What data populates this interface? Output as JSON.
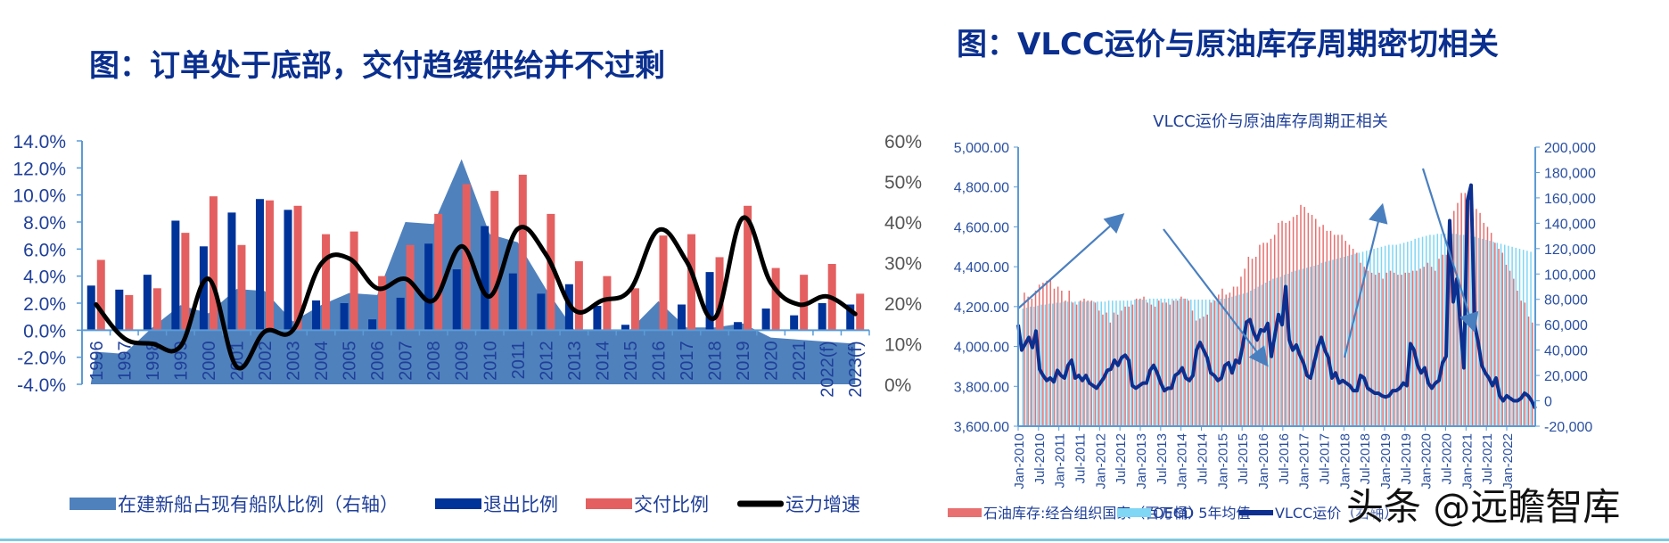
{
  "left_panel": {
    "title": "图：订单处于底部，交付趋缓供给并不过剩"
  },
  "right_panel": {
    "title": "图：VLCC运价与原油库存周期密切相关",
    "chart_title": "VLCC运价与原油库存周期正相关"
  },
  "watermark": "头条 @远瞻智库",
  "colors": {
    "title": "#0a2f8f",
    "area": "#4f81bd",
    "exit_bar": "#003399",
    "delivery_bar": "#e46060",
    "growth_line": "#000000",
    "inventory_bar": "#e87070",
    "oecd_avg_bar": "#7fd6f5",
    "vlcc_line": "#0d2f8f",
    "arrow": "#4a7fbf",
    "axis": "#5b9bd5"
  },
  "chart_data": [
    {
      "type": "bar+line+area",
      "title": "图：订单处于底部，交付趋缓供给并不过剩",
      "categories": [
        "1996",
        "1997",
        "1998",
        "1999",
        "2000",
        "2001",
        "2002",
        "2003",
        "2004",
        "2005",
        "2006",
        "2007",
        "2008",
        "2009",
        "2010",
        "2011",
        "2012",
        "2013",
        "2014",
        "2015",
        "2016",
        "2017",
        "2018",
        "2019",
        "2020",
        "2021",
        "2022(f)",
        "2023(f)"
      ],
      "left_axis": {
        "ylim": [
          -4.0,
          14.0
        ],
        "ticks": [
          "-4.0%",
          "-2.0%",
          "0.0%",
          "2.0%",
          "4.0%",
          "6.0%",
          "8.0%",
          "10.0%",
          "12.0%",
          "14.0%"
        ]
      },
      "right_axis": {
        "ylim": [
          0,
          60
        ],
        "ticks": [
          "0%",
          "10%",
          "20%",
          "30%",
          "40%",
          "50%",
          "60%"
        ]
      },
      "series": [
        {
          "name": "在建新船占现有船队比例（右轴）",
          "type": "area",
          "axis": "right",
          "values": [
            8.0,
            7.5,
            14.0,
            19.5,
            17.5,
            23.5,
            23.0,
            15.5,
            19.5,
            22.5,
            22.0,
            40.0,
            39.5,
            55.5,
            37.0,
            35.0,
            23.5,
            13.5,
            13.5,
            13.5,
            20.5,
            14.0,
            14.0,
            15.0,
            11.5,
            11.0,
            10.5,
            10.0
          ]
        },
        {
          "name": "退出比例",
          "type": "bar",
          "axis": "left",
          "values": [
            3.3,
            3.0,
            4.1,
            8.1,
            6.2,
            8.7,
            9.7,
            8.9,
            2.2,
            2.0,
            0.8,
            2.4,
            6.4,
            4.5,
            7.7,
            4.2,
            2.7,
            3.4,
            1.8,
            0.4,
            0.0,
            1.9,
            4.3,
            0.6,
            1.6,
            1.1,
            2.0,
            1.9
          ]
        },
        {
          "name": "交付比例",
          "type": "bar",
          "axis": "left",
          "values": [
            5.2,
            2.6,
            3.1,
            7.2,
            9.9,
            6.3,
            9.6,
            9.2,
            7.1,
            7.3,
            4.0,
            6.3,
            8.6,
            10.8,
            10.3,
            11.5,
            8.6,
            5.1,
            4.0,
            3.1,
            7.0,
            7.1,
            5.4,
            9.2,
            4.6,
            4.1,
            4.9,
            2.7
          ]
        },
        {
          "name": "运力增速",
          "type": "line",
          "axis": "left",
          "values": [
            1.9,
            -0.6,
            -1.0,
            -1.2,
            3.8,
            -2.7,
            -0.1,
            0.0,
            4.9,
            5.3,
            3.1,
            3.8,
            2.2,
            6.2,
            2.5,
            7.5,
            5.6,
            1.5,
            2.2,
            3.0,
            7.4,
            5.1,
            0.9,
            8.3,
            3.5,
            1.9,
            2.5,
            1.2
          ]
        }
      ],
      "legend": [
        "在建新船占现有船队比例（右轴）",
        "退出比例",
        "交付比例",
        "运力增速"
      ],
      "legend_position": "bottom"
    },
    {
      "type": "bar+line",
      "title": "VLCC运价与原油库存周期正相关",
      "x_tick_labels": [
        "Jan-2010",
        "Jul-2010",
        "Jan-2011",
        "Jul-2011",
        "Jan-2012",
        "Jul-2012",
        "Jan-2013",
        "Jul-2013",
        "Jan-2014",
        "Jul-2014",
        "Jan-2015",
        "Jul-2015",
        "Jan-2016",
        "Jul-2016",
        "Jan-2017",
        "Jul-2017",
        "Jan-2018",
        "Jul-2018",
        "Jan-2019",
        "Jul-2019",
        "Jan-2020",
        "Jul-2020",
        "Jan-2021",
        "Jul-2021",
        "Jan-2022"
      ],
      "left_axis": {
        "ylim": [
          3600,
          5000
        ],
        "ticks": [
          "3,600.00",
          "3,800.00",
          "4,000.00",
          "4,200.00",
          "4,400.00",
          "4,600.00",
          "4,800.00",
          "5,000.00"
        ]
      },
      "right_axis": {
        "ylim": [
          -20000,
          200000
        ],
        "ticks": [
          "-20,000",
          "0",
          "20,000",
          "40,000",
          "60,000",
          "80,000",
          "100,000",
          "120,000",
          "140,000",
          "160,000",
          "180,000",
          "200,000"
        ]
      },
      "series": [
        {
          "name": "石油库存:经合组织国家（百万桶）",
          "type": "bar",
          "axis": "left",
          "values": [
            4270,
            4250,
            4240,
            4280,
            4310,
            4320,
            4330,
            4340,
            4290,
            4300,
            4280,
            4230,
            4280,
            4220,
            4210,
            4230,
            4240,
            4230,
            4230,
            4220,
            4180,
            4160,
            4170,
            4120,
            4170,
            4160,
            4180,
            4200,
            4200,
            4210,
            4240,
            4240,
            4250,
            4220,
            4210,
            4200,
            4230,
            4220,
            4220,
            4210,
            4230,
            4230,
            4250,
            4240,
            4230,
            4180,
            4130,
            4140,
            4150,
            4160,
            4220,
            4230,
            4260,
            4290,
            4260,
            4270,
            4300,
            4300,
            4350,
            4390,
            4450,
            4440,
            4450,
            4510,
            4520,
            4520,
            4540,
            4560,
            4620,
            4630,
            4620,
            4630,
            4650,
            4660,
            4710,
            4700,
            4670,
            4660,
            4640,
            4600,
            4610,
            4580,
            4580,
            4560,
            4560,
            4560,
            4530,
            4510,
            4490,
            4470,
            4420,
            4400,
            4380,
            4370,
            4360,
            4370,
            4340,
            4370,
            4380,
            4370,
            4360,
            4360,
            4370,
            4370,
            4380,
            4380,
            4390,
            4400,
            4420,
            4400,
            4380,
            4440,
            4460,
            4460,
            4600,
            4680,
            4720,
            4770,
            4770,
            4760,
            4720,
            4690,
            4670,
            4620,
            4600,
            4570,
            4520,
            4490,
            4470,
            4410,
            4380,
            4340,
            4280,
            4230,
            4220,
            4150,
            4120
          ]
        },
        {
          "name": "OECD 5年均值",
          "type": "bar",
          "axis": "left",
          "values": [
            4190,
            4195,
            4200,
            4200,
            4205,
            4210,
            4210,
            4215,
            4215,
            4220,
            4220,
            4225,
            4225,
            4225,
            4225,
            4225,
            4225,
            4225,
            4225,
            4225,
            4225,
            4225,
            4225,
            4230,
            4230,
            4230,
            4230,
            4230,
            4230,
            4230,
            4235,
            4235,
            4235,
            4235,
            4240,
            4240,
            4240,
            4240,
            4240,
            4240,
            4240,
            4240,
            4240,
            4240,
            4240,
            4235,
            4235,
            4235,
            4235,
            4235,
            4235,
            4235,
            4235,
            4240,
            4240,
            4245,
            4250,
            4255,
            4260,
            4265,
            4270,
            4280,
            4290,
            4300,
            4310,
            4320,
            4330,
            4340,
            4345,
            4350,
            4360,
            4365,
            4375,
            4380,
            4385,
            4390,
            4395,
            4400,
            4405,
            4410,
            4420,
            4425,
            4430,
            4435,
            4440,
            4445,
            4450,
            4455,
            4460,
            4465,
            4470,
            4475,
            4480,
            4485,
            4490,
            4495,
            4500,
            4505,
            4510,
            4510,
            4510,
            4515,
            4520,
            4525,
            4530,
            4540,
            4545,
            4550,
            4555,
            4560,
            4560,
            4565,
            4565,
            4565,
            4565,
            4565,
            4565,
            4560,
            4560,
            4560,
            4555,
            4550,
            4545,
            4540,
            4535,
            4530,
            4525,
            4520,
            4515,
            4510,
            4505,
            4500,
            4495,
            4490,
            4485,
            4480,
            4475
          ]
        },
        {
          "name": "VLCC运价（右轴）",
          "type": "line",
          "axis": "right",
          "values": [
            60000,
            40000,
            45000,
            50000,
            42000,
            55000,
            25000,
            20000,
            16000,
            18000,
            15000,
            24000,
            20000,
            18000,
            28000,
            32000,
            18000,
            20000,
            16000,
            20000,
            14000,
            12000,
            10000,
            14000,
            18000,
            24000,
            25000,
            32000,
            28000,
            34000,
            36000,
            32000,
            12000,
            10000,
            12000,
            14000,
            14000,
            24000,
            28000,
            22000,
            14000,
            8000,
            10000,
            10000,
            20000,
            22000,
            26000,
            18000,
            16000,
            20000,
            40000,
            46000,
            40000,
            34000,
            22000,
            20000,
            16000,
            18000,
            28000,
            30000,
            22000,
            32000,
            30000,
            44000,
            62000,
            64000,
            54000,
            48000,
            56000,
            55000,
            61000,
            35000,
            52000,
            68000,
            60000,
            90000,
            48000,
            40000,
            44000,
            36000,
            30000,
            20000,
            18000,
            30000,
            42000,
            50000,
            40000,
            34000,
            18000,
            22000,
            14000,
            16000,
            14000,
            12000,
            8000,
            8000,
            20000,
            18000,
            10000,
            8000,
            6000,
            6000,
            4000,
            3000,
            4000,
            8000,
            8000,
            10000,
            14000,
            12000,
            45000,
            40000,
            28000,
            22000,
            26000,
            14000,
            10000,
            14000,
            16000,
            30000,
            35000,
            142000,
            78000,
            96000,
            60000,
            26000,
            158000,
            170000,
            60000,
            46000,
            28000,
            22000,
            18000,
            12000,
            18000,
            4000,
            0,
            4000,
            2000,
            0,
            0,
            2000,
            6000,
            4000,
            0,
            -6000
          ]
        }
      ],
      "annotations": [
        "arrow up Jan-2010→Jul-2012",
        "arrow down Jan-2013→Jul-2016",
        "arrow up Jul-2018→Jan-2019",
        "arrow down Jul-2020→Jul-2021"
      ],
      "legend": [
        "石油库存:经合组织国家（百万桶）",
        "OECD 5年均值",
        "VLCC运价（右轴）"
      ],
      "legend_position": "bottom"
    }
  ]
}
